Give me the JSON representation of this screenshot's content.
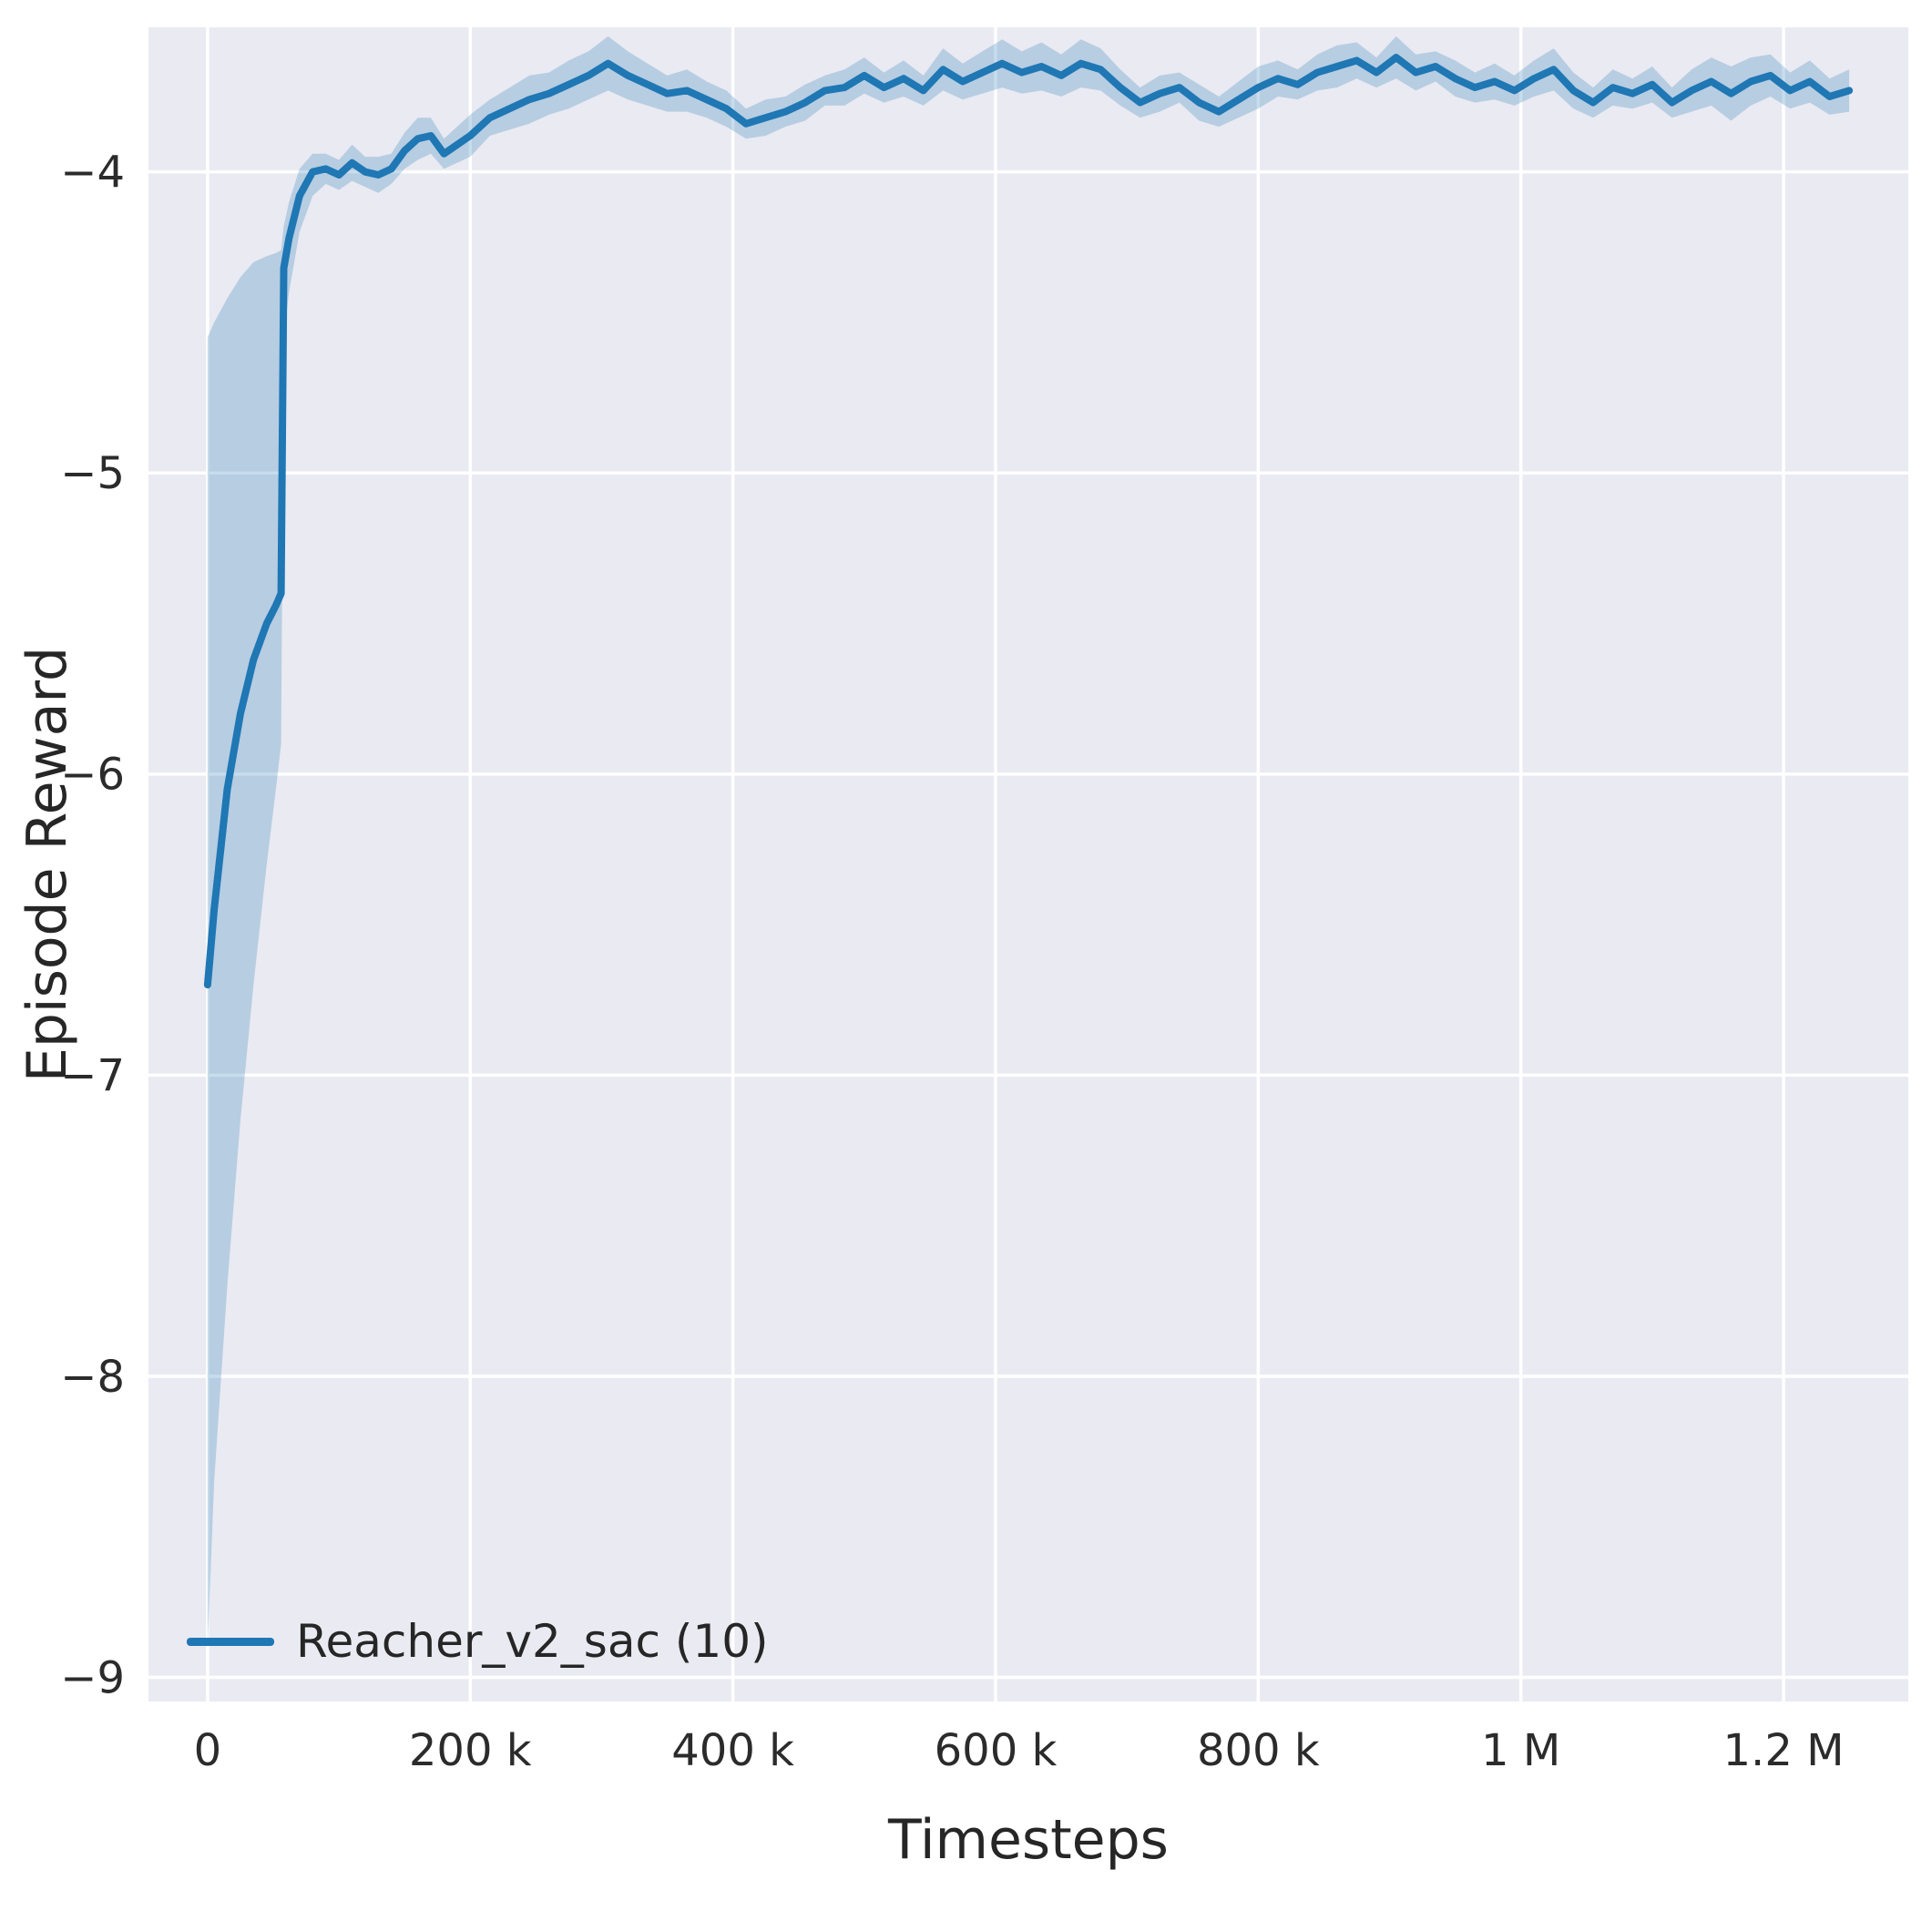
{
  "figure": {
    "background": "#ffffff",
    "plot_background": "#eaeaf2",
    "grid_color": "#ffffff",
    "text_color": "#2b2b2b",
    "accent": "#1f77b4",
    "band_opacity": 0.25
  },
  "chart_data": {
    "type": "line",
    "title": "",
    "xlabel": "Timesteps",
    "ylabel": "Episode Reward",
    "grid": true,
    "legend_position": "lower left",
    "xlim": [
      -45000,
      1295000
    ],
    "ylim": [
      -9.08,
      -3.52
    ],
    "x_ticks": [
      {
        "value": 0,
        "label": "0"
      },
      {
        "value": 200000,
        "label": "200 k"
      },
      {
        "value": 400000,
        "label": "400 k"
      },
      {
        "value": 600000,
        "label": "600 k"
      },
      {
        "value": 800000,
        "label": "800 k"
      },
      {
        "value": 1000000,
        "label": "1 M"
      },
      {
        "value": 1200000,
        "label": "1.2 M"
      }
    ],
    "y_ticks": [
      {
        "value": -4,
        "label": "−4"
      },
      {
        "value": -5,
        "label": "−5"
      },
      {
        "value": -6,
        "label": "−6"
      },
      {
        "value": -7,
        "label": "−7"
      },
      {
        "value": -8,
        "label": "−8"
      },
      {
        "value": -9,
        "label": "−9"
      }
    ],
    "legend": [
      {
        "label": "Reacher_v2_sac (10)",
        "color": "#1f77b4"
      }
    ],
    "series": [
      {
        "name": "Reacher_v2_sac (10)",
        "color": "#1f77b4",
        "x": [
          0,
          5000,
          15000,
          25000,
          35000,
          45000,
          52000,
          56000,
          58000,
          62000,
          70000,
          80000,
          90000,
          100000,
          110000,
          120000,
          130000,
          140000,
          150000,
          160000,
          170000,
          180000,
          190000,
          200000,
          215000,
          230000,
          245000,
          260000,
          275000,
          290000,
          305000,
          320000,
          335000,
          350000,
          365000,
          380000,
          395000,
          410000,
          425000,
          440000,
          455000,
          470000,
          485000,
          500000,
          515000,
          530000,
          545000,
          560000,
          575000,
          590000,
          605000,
          620000,
          635000,
          650000,
          665000,
          680000,
          695000,
          710000,
          725000,
          740000,
          755000,
          770000,
          785000,
          800000,
          815000,
          830000,
          845000,
          860000,
          875000,
          890000,
          905000,
          920000,
          935000,
          950000,
          965000,
          980000,
          995000,
          1010000,
          1025000,
          1040000,
          1055000,
          1070000,
          1085000,
          1100000,
          1115000,
          1130000,
          1145000,
          1160000,
          1175000,
          1190000,
          1205000,
          1220000,
          1235000,
          1250000
        ],
        "mean": [
          -6.7,
          -6.45,
          -6.05,
          -5.8,
          -5.62,
          -5.5,
          -5.44,
          -5.4,
          -4.32,
          -4.22,
          -4.08,
          -4.0,
          -3.99,
          -4.01,
          -3.97,
          -4.0,
          -4.01,
          -3.99,
          -3.93,
          -3.89,
          -3.88,
          -3.94,
          -3.91,
          -3.88,
          -3.82,
          -3.79,
          -3.76,
          -3.74,
          -3.71,
          -3.68,
          -3.64,
          -3.68,
          -3.71,
          -3.74,
          -3.73,
          -3.76,
          -3.79,
          -3.84,
          -3.82,
          -3.8,
          -3.77,
          -3.73,
          -3.72,
          -3.68,
          -3.72,
          -3.69,
          -3.73,
          -3.66,
          -3.7,
          -3.67,
          -3.64,
          -3.67,
          -3.65,
          -3.68,
          -3.64,
          -3.66,
          -3.72,
          -3.77,
          -3.74,
          -3.72,
          -3.77,
          -3.8,
          -3.76,
          -3.72,
          -3.69,
          -3.71,
          -3.67,
          -3.65,
          -3.63,
          -3.67,
          -3.62,
          -3.67,
          -3.65,
          -3.69,
          -3.72,
          -3.7,
          -3.73,
          -3.69,
          -3.66,
          -3.73,
          -3.77,
          -3.72,
          -3.74,
          -3.71,
          -3.77,
          -3.73,
          -3.7,
          -3.74,
          -3.7,
          -3.68,
          -3.73,
          -3.7,
          -3.75,
          -3.73
        ],
        "lower": [
          -8.9,
          -8.35,
          -7.7,
          -7.15,
          -6.7,
          -6.3,
          -6.05,
          -5.9,
          -4.55,
          -4.4,
          -4.2,
          -4.08,
          -4.04,
          -4.06,
          -4.03,
          -4.05,
          -4.07,
          -4.04,
          -3.99,
          -3.96,
          -3.94,
          -3.99,
          -3.97,
          -3.95,
          -3.88,
          -3.86,
          -3.84,
          -3.81,
          -3.79,
          -3.76,
          -3.73,
          -3.76,
          -3.78,
          -3.8,
          -3.8,
          -3.82,
          -3.85,
          -3.89,
          -3.88,
          -3.85,
          -3.83,
          -3.78,
          -3.78,
          -3.74,
          -3.77,
          -3.75,
          -3.78,
          -3.73,
          -3.76,
          -3.74,
          -3.72,
          -3.74,
          -3.73,
          -3.75,
          -3.72,
          -3.73,
          -3.78,
          -3.82,
          -3.8,
          -3.77,
          -3.83,
          -3.85,
          -3.82,
          -3.79,
          -3.75,
          -3.76,
          -3.73,
          -3.72,
          -3.69,
          -3.72,
          -3.69,
          -3.73,
          -3.7,
          -3.75,
          -3.77,
          -3.76,
          -3.78,
          -3.75,
          -3.73,
          -3.79,
          -3.82,
          -3.78,
          -3.79,
          -3.77,
          -3.82,
          -3.8,
          -3.78,
          -3.83,
          -3.78,
          -3.75,
          -3.79,
          -3.77,
          -3.81,
          -3.8
        ],
        "upper": [
          -4.55,
          -4.5,
          -4.42,
          -4.35,
          -4.3,
          -4.28,
          -4.27,
          -4.26,
          -4.18,
          -4.1,
          -3.99,
          -3.94,
          -3.94,
          -3.96,
          -3.91,
          -3.95,
          -3.95,
          -3.94,
          -3.87,
          -3.82,
          -3.82,
          -3.89,
          -3.85,
          -3.81,
          -3.76,
          -3.72,
          -3.68,
          -3.67,
          -3.63,
          -3.6,
          -3.55,
          -3.6,
          -3.64,
          -3.68,
          -3.66,
          -3.7,
          -3.73,
          -3.79,
          -3.76,
          -3.75,
          -3.71,
          -3.68,
          -3.66,
          -3.62,
          -3.67,
          -3.63,
          -3.68,
          -3.59,
          -3.64,
          -3.6,
          -3.56,
          -3.6,
          -3.57,
          -3.61,
          -3.56,
          -3.59,
          -3.66,
          -3.72,
          -3.68,
          -3.67,
          -3.71,
          -3.75,
          -3.7,
          -3.65,
          -3.63,
          -3.66,
          -3.61,
          -3.58,
          -3.57,
          -3.62,
          -3.55,
          -3.61,
          -3.6,
          -3.63,
          -3.67,
          -3.64,
          -3.68,
          -3.63,
          -3.59,
          -3.67,
          -3.72,
          -3.66,
          -3.69,
          -3.65,
          -3.72,
          -3.66,
          -3.62,
          -3.65,
          -3.62,
          -3.61,
          -3.67,
          -3.63,
          -3.69,
          -3.66
        ]
      }
    ]
  }
}
